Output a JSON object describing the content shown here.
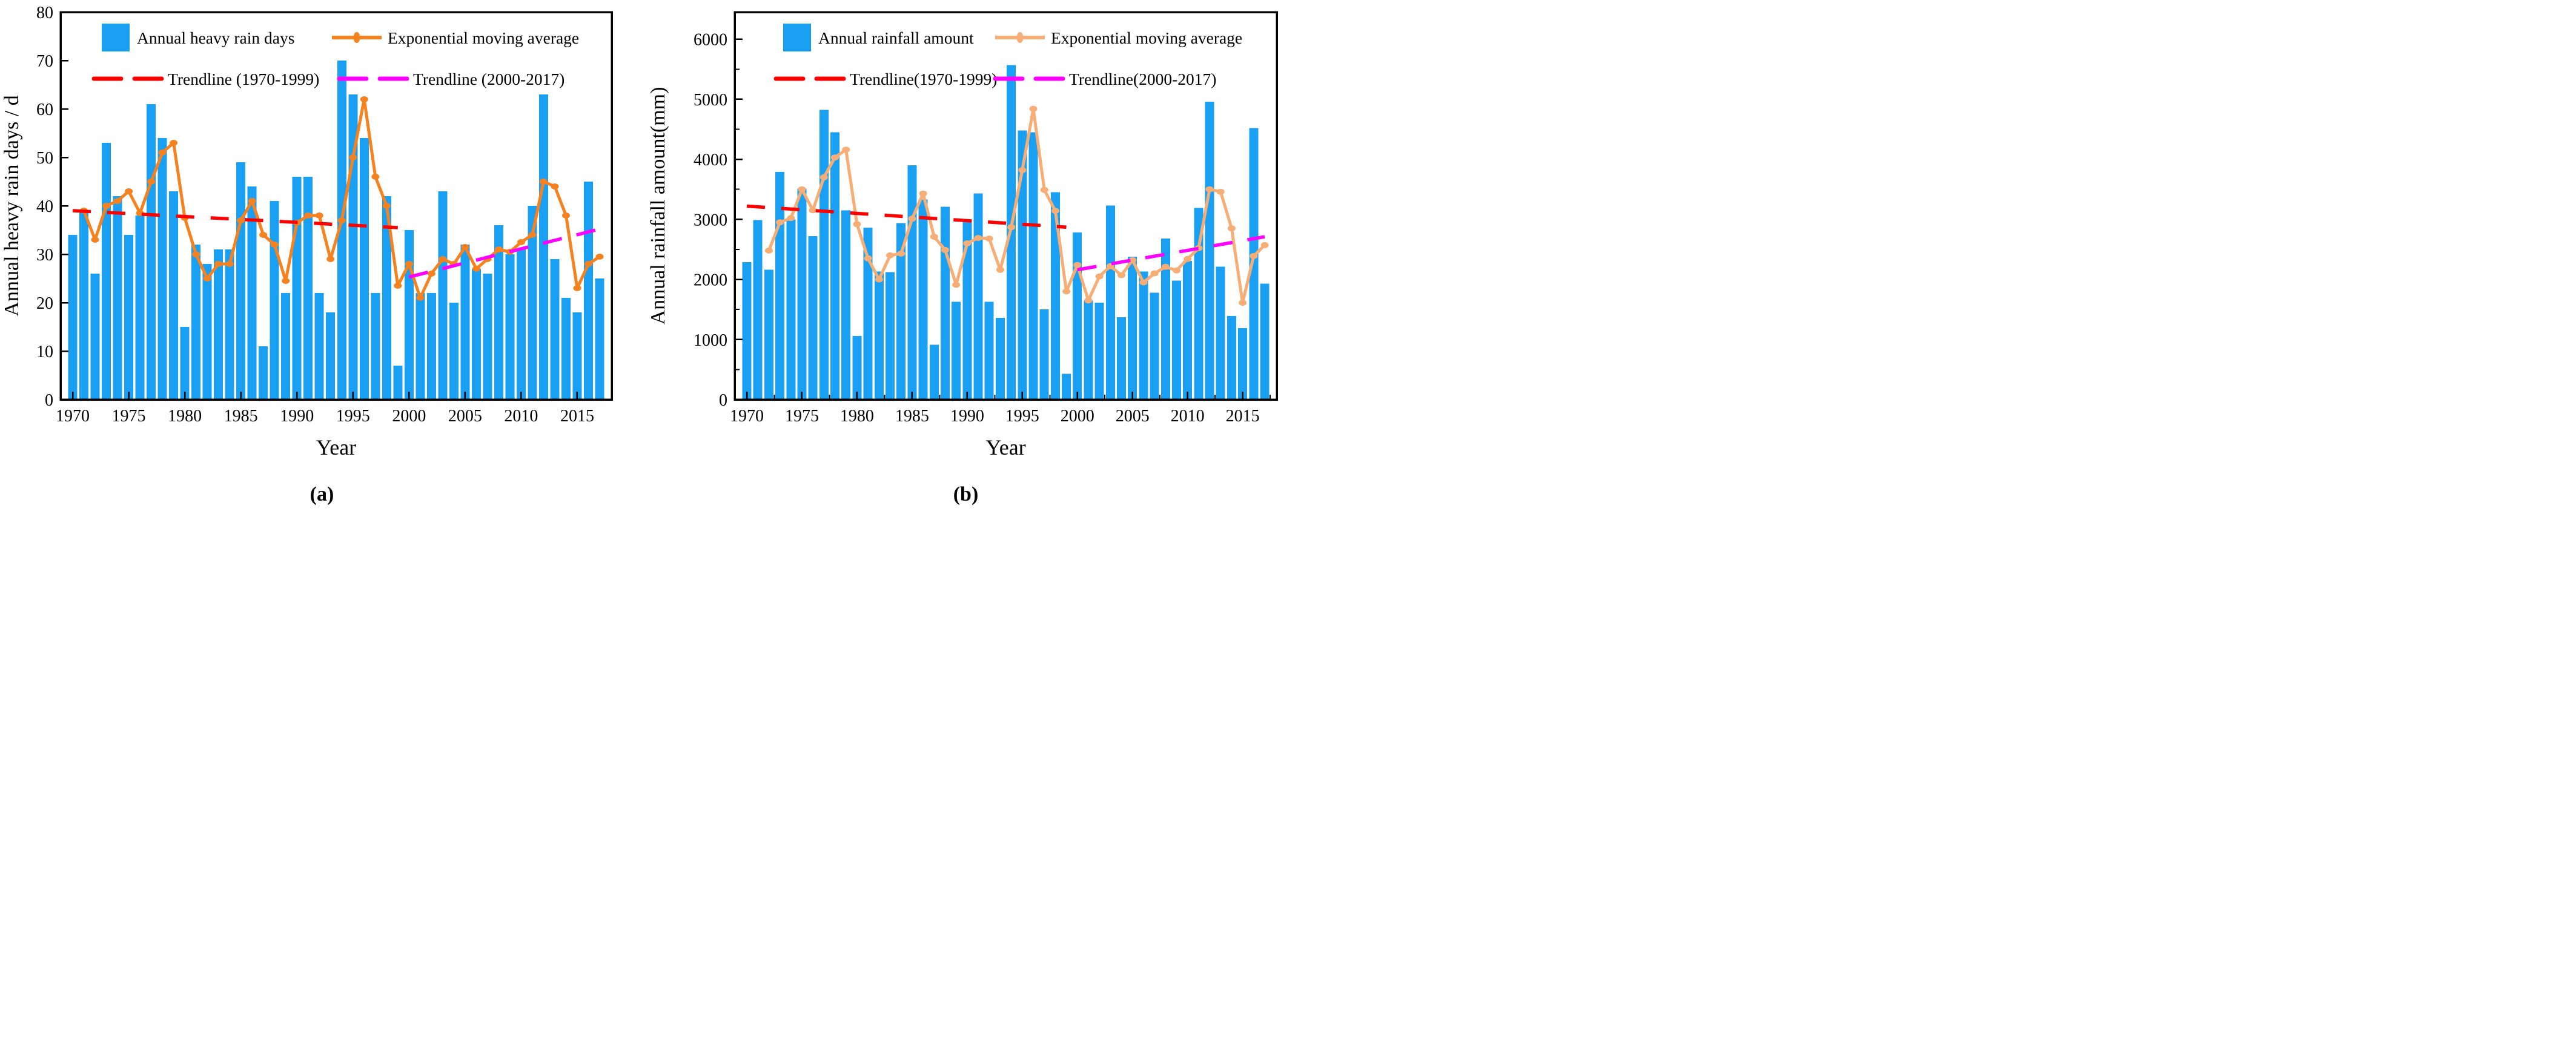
{
  "figure": {
    "background": "#ffffff",
    "panels": [
      "(a)",
      "(b)"
    ]
  },
  "colors": {
    "bar_blue": "#1AA0F3",
    "ema_orange_a": "#F6821F",
    "ema_orange_b": "#F6AE76",
    "trend_red": "#FD0000",
    "trend_magenta": "#FF00FF",
    "axis_black": "#000000"
  },
  "chart_data": [
    {
      "type": "bar",
      "panel_label": "(a)",
      "xlabel": "Year",
      "ylabel": "Annual heavy rain days / d",
      "ylim": [
        0,
        80
      ],
      "yticks": [
        0,
        10,
        20,
        30,
        40,
        50,
        60,
        70,
        80
      ],
      "xticks": [
        1970,
        1975,
        1980,
        1985,
        1990,
        1995,
        2000,
        2005,
        2010,
        2015
      ],
      "year_start": 1970,
      "year_end": 2017,
      "grid": "off",
      "legend_position": "top-inside",
      "series": [
        {
          "name": "Annual heavy rain days",
          "kind": "bar",
          "year_start": 1970,
          "values": [
            34,
            39,
            26,
            53,
            42,
            34,
            38,
            61,
            54,
            43,
            15,
            32,
            28,
            31,
            31,
            49,
            44,
            11,
            41,
            22,
            46,
            46,
            22,
            18,
            70,
            63,
            54,
            22,
            42,
            7,
            35,
            22,
            22,
            43,
            20,
            32,
            27,
            26,
            36,
            30,
            31,
            40,
            63,
            29,
            21,
            18,
            45,
            25
          ]
        },
        {
          "name": "Exponential moving average",
          "kind": "line",
          "year_start": 1971,
          "values": [
            39,
            33,
            40,
            41,
            43,
            38.5,
            45,
            51,
            53,
            37.5,
            30,
            25,
            28,
            28,
            37,
            41,
            34,
            32,
            24.5,
            36.5,
            38,
            38,
            29,
            37,
            50,
            62,
            46,
            40,
            23.5,
            28,
            21,
            26,
            29,
            28,
            31.5,
            27,
            29,
            31,
            30.5,
            32.5,
            34,
            45,
            44,
            38,
            23,
            28,
            29.5
          ]
        },
        {
          "name": "Trendline (1970-1999)",
          "kind": "trend",
          "x": [
            1970,
            1999
          ],
          "y": [
            39.0,
            35.5
          ]
        },
        {
          "name": "Trendline (2000-2017)",
          "kind": "trend2",
          "x": [
            2000,
            2017
          ],
          "y": [
            25.3,
            35.2
          ]
        }
      ]
    },
    {
      "type": "bar",
      "panel_label": "(b)",
      "xlabel": "Year",
      "ylabel": "Annual rainfall amount(mm)",
      "ylim": [
        0,
        6450
      ],
      "yticks": [
        0,
        1000,
        2000,
        3000,
        4000,
        5000,
        6000
      ],
      "y_minor_step": 500,
      "x_minor_step": 2.5,
      "xticks": [
        1970,
        1975,
        1980,
        1985,
        1990,
        1995,
        2000,
        2005,
        2010,
        2015
      ],
      "year_start": 1970,
      "year_end": 2017,
      "grid": "off",
      "legend_position": "top-inside",
      "series": [
        {
          "name": "Annual rainfall amount",
          "kind": "bar",
          "year_start": 1970,
          "values": [
            2290,
            2990,
            2160,
            3790,
            3000,
            3510,
            2720,
            4820,
            4450,
            3150,
            1060,
            2860,
            2130,
            2120,
            2940,
            3900,
            3330,
            910,
            3210,
            1630,
            3000,
            3430,
            1630,
            1360,
            5570,
            4480,
            4450,
            1500,
            3450,
            430,
            2780,
            1650,
            1610,
            3230,
            1370,
            2380,
            2130,
            1780,
            2680,
            1980,
            2310,
            3190,
            4960,
            2210,
            1390,
            1190,
            4520,
            1930
          ]
        },
        {
          "name": "Exponential moving average",
          "kind": "line",
          "year_start": 1972,
          "values": [
            2480,
            2950,
            3020,
            3500,
            3150,
            3700,
            4030,
            4160,
            2920,
            2350,
            2000,
            2400,
            2430,
            3010,
            3430,
            2710,
            2490,
            1910,
            2600,
            2690,
            2680,
            2160,
            2870,
            3820,
            4840,
            3490,
            3140,
            1800,
            2240,
            1650,
            2050,
            2220,
            2070,
            2320,
            1950,
            2100,
            2210,
            2150,
            2340,
            2520,
            3500,
            3460,
            2850,
            1610,
            2390,
            2570
          ]
        },
        {
          "name": "Trendline(1970-1999)",
          "kind": "trend",
          "x": [
            1970,
            1999
          ],
          "y": [
            3220,
            2870
          ]
        },
        {
          "name": "Trendline(2000-2017)",
          "kind": "trend2",
          "x": [
            2000,
            2017
          ],
          "y": [
            2160,
            2710
          ]
        }
      ]
    }
  ]
}
